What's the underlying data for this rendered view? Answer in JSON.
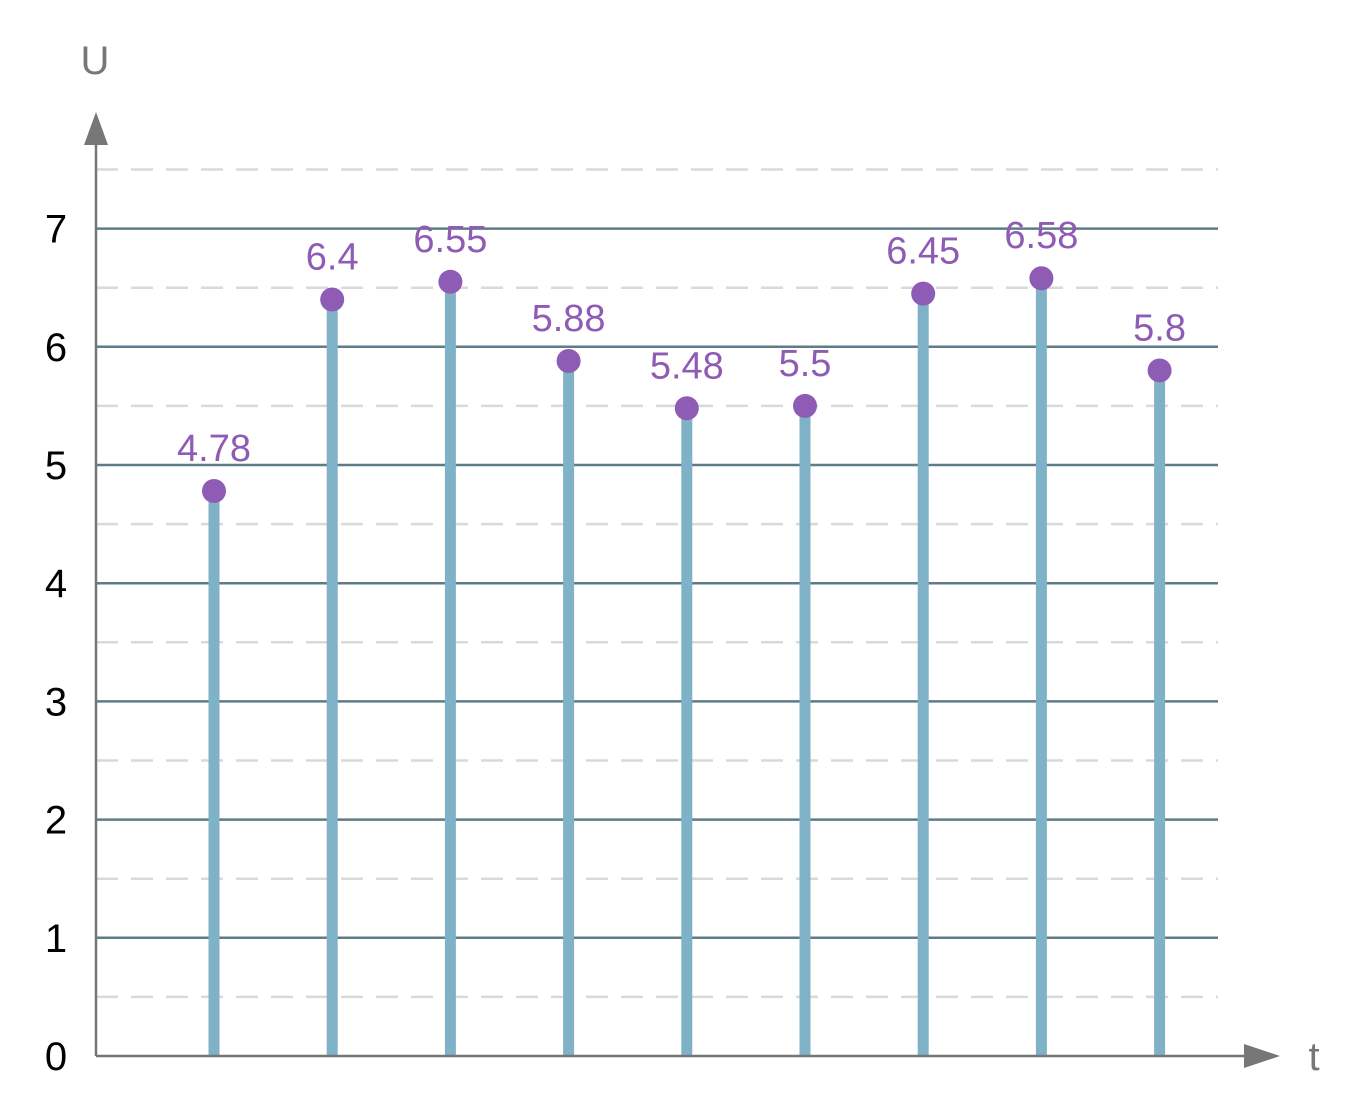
{
  "chart_data": {
    "type": "stem",
    "title": "",
    "xlabel": "t",
    "ylabel": "U",
    "ylim": [
      0,
      7.5
    ],
    "yticks": [
      0,
      1,
      2,
      3,
      4,
      5,
      6,
      7
    ],
    "minor_grid_step": 0.5,
    "x": [
      1,
      2,
      3,
      4,
      5,
      6,
      7,
      8,
      9
    ],
    "values": [
      4.78,
      6.4,
      6.55,
      5.88,
      5.48,
      5.5,
      6.45,
      6.58,
      5.8
    ],
    "data_labels": [
      "4.78",
      "6.4",
      "6.55",
      "5.88",
      "5.48",
      "5.5",
      "6.45",
      "6.58",
      "5.8"
    ],
    "grid": true,
    "legend": "none",
    "colors": {
      "stem": "#80b2c7",
      "marker": "#8e5bb5",
      "label": "#8e5bb5",
      "major_grid": "#5e7b88",
      "minor_grid": "#d9d9d9",
      "axis": "#777777"
    }
  }
}
